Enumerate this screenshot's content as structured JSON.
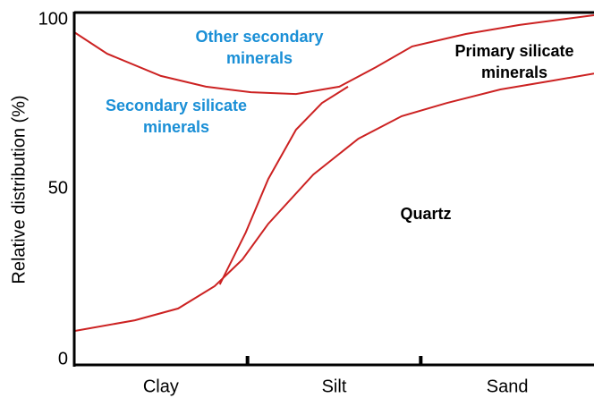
{
  "chart_data": {
    "type": "line",
    "y_label": "Relative distribution (%)",
    "categories": [
      "Clay",
      "Silt",
      "Sand"
    ],
    "xlim": [
      0,
      3
    ],
    "ylim": [
      0,
      100
    ],
    "yticks": [
      0,
      50,
      100
    ],
    "series": [
      {
        "color": "#cc2222",
        "x": [
          0,
          0.19,
          0.5,
          0.76,
          1.02,
          1.28,
          1.53,
          1.74,
          1.95,
          2.26,
          2.57,
          3.0
        ],
        "values": [
          95.1,
          88.9,
          82.5,
          79.4,
          77.8,
          77.3,
          79.4,
          85,
          91,
          94.6,
          97.2,
          100
        ]
      },
      {
        "color": "#cc2222",
        "x": [
          0.84,
          0.99,
          1.12,
          1.28,
          1.43,
          1.58
        ],
        "values": [
          22.4,
          37.4,
          52.8,
          67.0,
          74.7,
          79.4
        ]
      },
      {
        "color": "#cc2222",
        "x": [
          0,
          0.35,
          0.6,
          0.81,
          0.97,
          1.12,
          1.38,
          1.64,
          1.89,
          2.15,
          2.46,
          2.77,
          3.0
        ],
        "values": [
          9.0,
          12.1,
          15.5,
          21.9,
          29.6,
          39.9,
          54.1,
          64.4,
          70.9,
          74.7,
          78.6,
          81.2,
          83.2
        ]
      }
    ],
    "annotations": [
      {
        "lines": [
          "Other secondary",
          "minerals"
        ],
        "color": "#1a8fd6"
      },
      {
        "lines": [
          "Secondary silicate",
          "minerals"
        ],
        "color": "#1a8fd6"
      },
      {
        "lines": [
          "Primary silicate",
          "minerals"
        ],
        "color": "#000000"
      },
      {
        "lines": [
          "Quartz"
        ],
        "color": "#000000"
      }
    ]
  }
}
